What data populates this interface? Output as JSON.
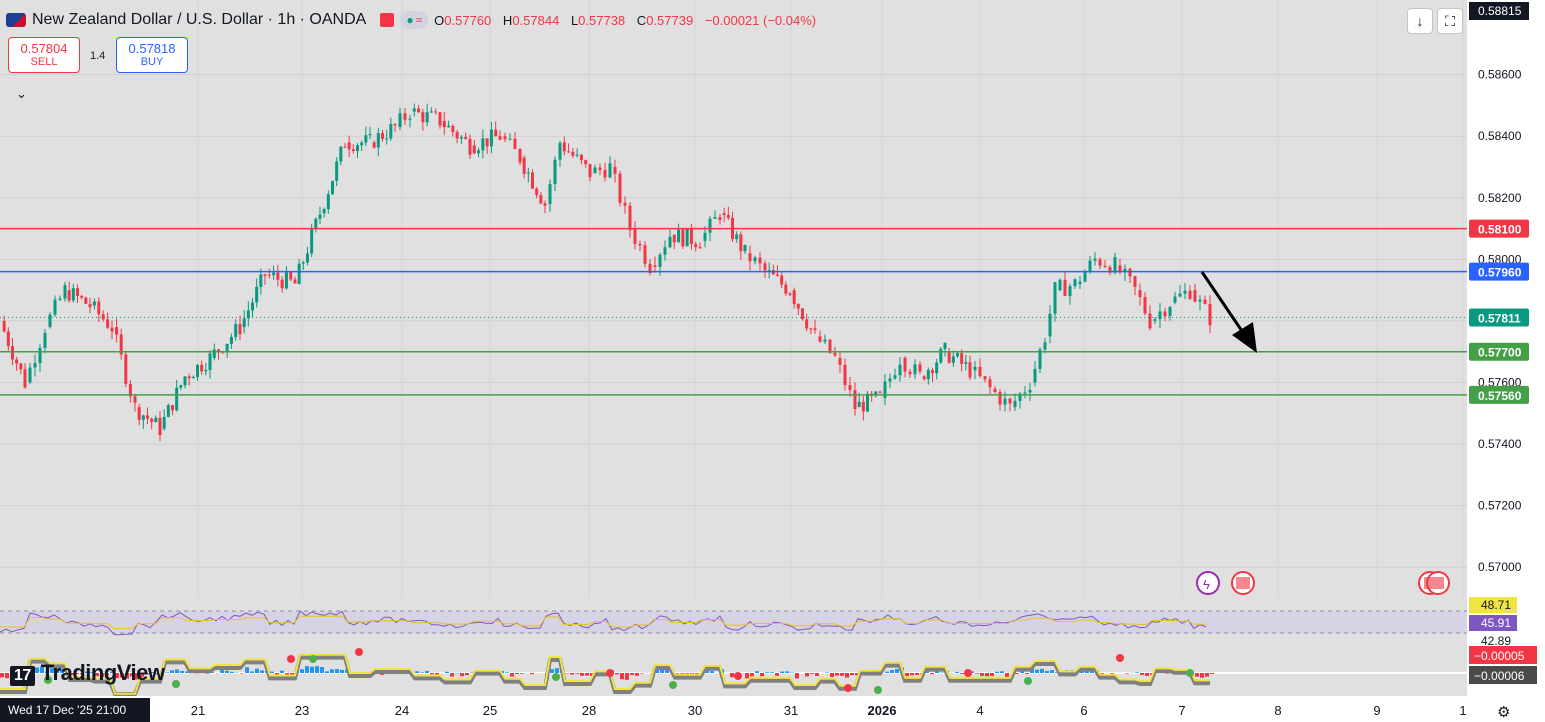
{
  "header": {
    "symbol": "New Zealand Dollar / U.S. Dollar · 1h · OANDA",
    "open_label": "O",
    "open": "0.57760",
    "high_label": "H",
    "high": "0.57844",
    "low_label": "L",
    "low": "0.57738",
    "close_label": "C",
    "close": "0.57739",
    "change": "−0.00021 (−0.04%)"
  },
  "trade": {
    "sell_price": "0.57804",
    "sell_label": "SELL",
    "spread": "1.4",
    "buy_price": "0.57818",
    "buy_label": "BUY"
  },
  "branding": {
    "logo": "TradingView",
    "logo_mark": "17"
  },
  "crosshair_time": "Wed 17 Dec '25   21:00",
  "price_axis": {
    "top_label": "0.58815",
    "ticks": [
      "0.58600",
      "0.58400",
      "0.58200",
      "0.58000",
      "0.57800",
      "0.57600",
      "0.57400",
      "0.57200",
      "0.57000"
    ]
  },
  "time_axis": [
    "21",
    "23",
    "24",
    "25",
    "28",
    "30",
    "31",
    "2026",
    "4",
    "6",
    "7",
    "8",
    "9",
    "1"
  ],
  "levels": [
    {
      "value": 0.581,
      "label": "0.58100",
      "color": "#f23645"
    },
    {
      "value": 0.5796,
      "label": "0.57960",
      "color": "#2962ff"
    },
    {
      "value": 0.577,
      "label": "0.57700",
      "color": "#43a047"
    },
    {
      "value": 0.5756,
      "label": "0.57560",
      "color": "#43a047"
    }
  ],
  "current_price": {
    "value": 0.57811,
    "label": "0.57811",
    "color": "#089981"
  },
  "rsi": {
    "value_a": "48.71",
    "value_b": "45.91",
    "value_c": "42.89"
  },
  "macd": {
    "value_a": "−0.00005",
    "value_b": "−0.00006"
  },
  "colors": {
    "up": "#089981",
    "down": "#f23645",
    "rsi_line": "#7e57c2",
    "rsi_ma": "#e8c21d"
  },
  "chart_data": {
    "type": "candlestick",
    "title": "New Zealand Dollar / U.S. Dollar · 1h · OANDA",
    "ylim": [
      0.569,
      0.5881
    ],
    "x_axis_labels": [
      "21",
      "23",
      "24",
      "25",
      "28",
      "30",
      "31",
      "2026",
      "4",
      "6",
      "7",
      "8",
      "9",
      "1"
    ],
    "approx_close_path": [
      [
        0,
        0.578
      ],
      [
        25,
        0.576
      ],
      [
        45,
        0.5778
      ],
      [
        65,
        0.579
      ],
      [
        90,
        0.5785
      ],
      [
        112,
        0.5778
      ],
      [
        135,
        0.5752
      ],
      [
        160,
        0.5745
      ],
      [
        185,
        0.5762
      ],
      [
        210,
        0.5768
      ],
      [
        240,
        0.5778
      ],
      [
        265,
        0.5795
      ],
      [
        295,
        0.5792
      ],
      [
        320,
        0.5815
      ],
      [
        345,
        0.5838
      ],
      [
        370,
        0.5838
      ],
      [
        395,
        0.5843
      ],
      [
        410,
        0.5848
      ],
      [
        440,
        0.5845
      ],
      [
        470,
        0.5837
      ],
      [
        500,
        0.584
      ],
      [
        520,
        0.5833
      ],
      [
        545,
        0.5818
      ],
      [
        560,
        0.5838
      ],
      [
        590,
        0.5828
      ],
      [
        610,
        0.583
      ],
      [
        630,
        0.581
      ],
      [
        650,
        0.5798
      ],
      [
        670,
        0.5808
      ],
      [
        700,
        0.5806
      ],
      [
        720,
        0.5815
      ],
      [
        745,
        0.5802
      ],
      [
        765,
        0.5796
      ],
      [
        790,
        0.579
      ],
      [
        815,
        0.5775
      ],
      [
        835,
        0.5768
      ],
      [
        855,
        0.5752
      ],
      [
        880,
        0.5755
      ],
      [
        900,
        0.5768
      ],
      [
        920,
        0.5762
      ],
      [
        945,
        0.577
      ],
      [
        970,
        0.5764
      ],
      [
        990,
        0.5758
      ],
      [
        1010,
        0.5752
      ],
      [
        1030,
        0.576
      ],
      [
        1045,
        0.5775
      ],
      [
        1055,
        0.579
      ],
      [
        1075,
        0.5792
      ],
      [
        1095,
        0.58
      ],
      [
        1115,
        0.5798
      ],
      [
        1135,
        0.579
      ],
      [
        1150,
        0.578
      ],
      [
        1170,
        0.5786
      ],
      [
        1190,
        0.579
      ],
      [
        1210,
        0.5781
      ]
    ]
  }
}
